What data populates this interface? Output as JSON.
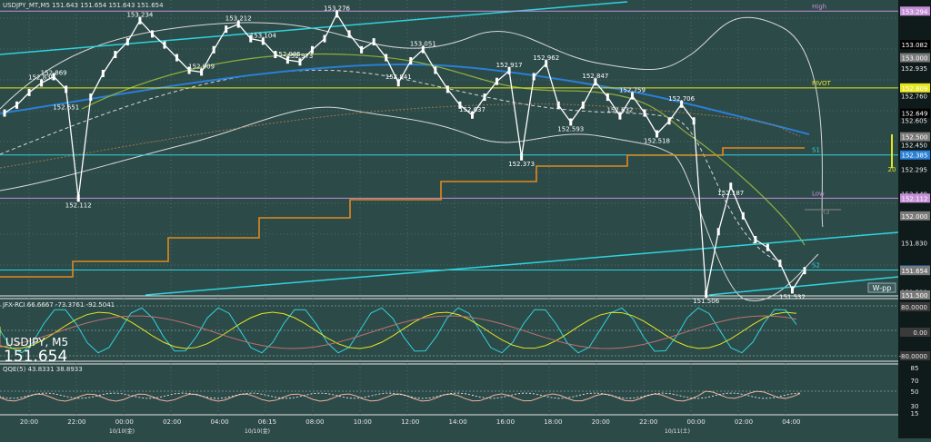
{
  "header": {
    "title": "USDJPY_MT,M5  151.643 151.654 151.643 151.654"
  },
  "symbol_label": "USDJPY, M5",
  "current_price": "151.654",
  "indicators": {
    "jfx": "JFX-RCI 66.6667 -73.3761 -92.5041",
    "qqe": "QQE(5) 43.8331 38.8933"
  },
  "colors": {
    "background": "#2c4a48",
    "candle": "#ffffff",
    "cyan_lines": "#2fd3de",
    "orange": "#e08a1e",
    "yellow": "#e6e620",
    "violet": "#c58fd8",
    "blue_ma": "#2a7fd6",
    "olive_ma": "#8fae3a",
    "band": "#d8d8d8",
    "axis_bg": "#0f1a1a"
  },
  "chart_data": {
    "type": "line",
    "title": "USDJPY_MT,M5",
    "timeframe": "M5",
    "ylim": [
      151.5,
      153.33
    ],
    "ohlc_path_y": [
      152.65,
      152.7,
      152.78,
      152.84,
      152.88,
      152.8,
      152.112,
      152.75,
      152.9,
      153.02,
      153.1,
      153.234,
      153.15,
      153.08,
      153.0,
      152.92,
      152.909,
      153.05,
      153.18,
      153.212,
      153.12,
      153.104,
      153.02,
      152.985,
      152.973,
      153.05,
      153.12,
      153.276,
      153.15,
      153.05,
      153.1,
      153.0,
      152.841,
      152.98,
      153.051,
      152.92,
      152.8,
      152.7,
      152.637,
      152.75,
      152.85,
      152.917,
      152.373,
      152.88,
      152.962,
      152.7,
      152.593,
      152.7,
      152.847,
      152.75,
      152.632,
      152.759,
      152.65,
      152.518,
      152.6,
      152.706,
      152.6,
      151.506,
      151.9,
      152.187,
      152.0,
      151.85,
      151.8,
      151.7,
      151.532,
      151.654
    ],
    "price_labels": [
      {
        "label": "152.839"
      },
      {
        "label": "152.869"
      },
      {
        "label": "152.651"
      },
      {
        "label": "152.112"
      },
      {
        "label": "153.234"
      },
      {
        "label": "152.909"
      },
      {
        "label": "153.212"
      },
      {
        "label": "153.104"
      },
      {
        "label": "152.985"
      },
      {
        "label": "152.973"
      },
      {
        "label": "153.276"
      },
      {
        "label": "152.841"
      },
      {
        "label": "153.051"
      },
      {
        "label": "152.637"
      },
      {
        "label": "152.917"
      },
      {
        "label": "152.373"
      },
      {
        "label": "152.962"
      },
      {
        "label": "152.593"
      },
      {
        "label": "152.847"
      },
      {
        "label": "152.518"
      },
      {
        "label": "152.759"
      },
      {
        "label": "152.632"
      },
      {
        "label": "152.706"
      },
      {
        "label": "152.187"
      },
      {
        "label": "151.506"
      },
      {
        "label": "151.532"
      }
    ],
    "levels": [
      {
        "name": "High",
        "value": 153.294
      },
      {
        "name": "PIVOT",
        "value": 152.809
      },
      {
        "name": "S1",
        "value": 152.385
      },
      {
        "name": "Low",
        "value": 152.112
      },
      {
        "name": "R3",
        "value": ""
      },
      {
        "name": "S2",
        "value": 151.658
      },
      {
        "name": "W-pp",
        "value": ""
      }
    ],
    "y_ticks": [
      "153.082",
      "152.935",
      "152.760",
      "152.605",
      "152.450",
      "152.295",
      "152.140",
      "151.830",
      "151.520"
    ],
    "right_tags": [
      "153.294",
      "153.082",
      "153.000",
      "152.809",
      "152.649",
      "152.500",
      "152.385",
      "152.112",
      "152.000",
      "151.658",
      "151.654",
      "151.500"
    ],
    "x_ticks": [
      "20:00",
      "22:00",
      "00:00",
      "02:00",
      "04:00",
      "06:15",
      "08:00",
      "10:00",
      "12:00",
      "14:00",
      "16:00",
      "18:00",
      "20:00",
      "22:00",
      "00:00",
      "02:00",
      "04:00"
    ],
    "date_ticks": [
      "10/10(金)",
      "10/10(金)",
      "10/11(土)"
    ],
    "annotation_20": "20",
    "rci_ticks": [
      "80.0000",
      "0.00",
      "-80.0000"
    ],
    "qqe_ticks": [
      "85",
      "70",
      "50",
      "30",
      "15"
    ]
  }
}
